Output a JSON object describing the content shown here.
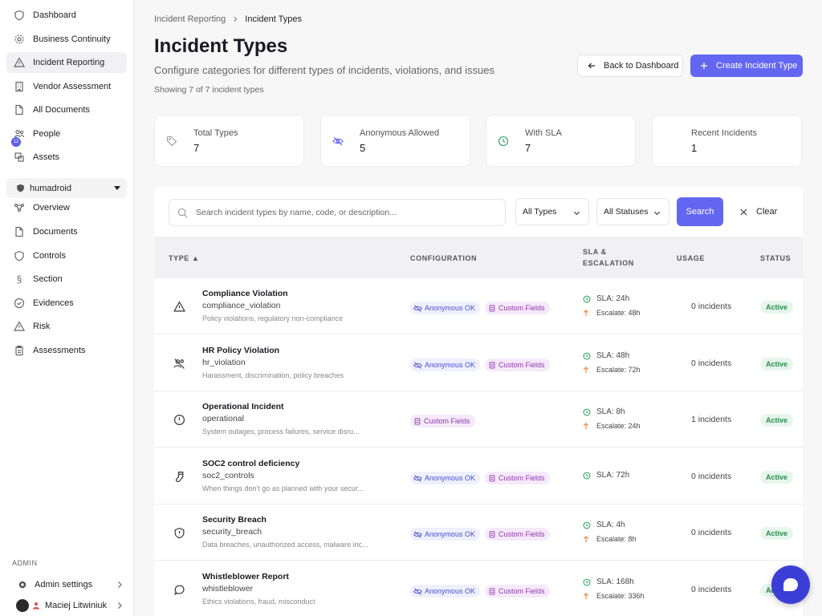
{
  "sidebar": {
    "nav": [
      {
        "label": "Dashboard",
        "icon": "shield-icon"
      },
      {
        "label": "Business Continuity",
        "icon": "gear-icon"
      },
      {
        "label": "Incident Reporting",
        "icon": "warning-icon"
      },
      {
        "label": "Vendor Assessment",
        "icon": "building-icon"
      },
      {
        "label": "All Documents",
        "icon": "documents-icon"
      },
      {
        "label": "People",
        "icon": "people-icon",
        "badge": "12"
      },
      {
        "label": "Assets",
        "icon": "assets-icon"
      }
    ],
    "workspace": "humadroid",
    "workspace_nav": [
      {
        "label": "Overview",
        "icon": "overview-icon"
      },
      {
        "label": "Documents",
        "icon": "documents-icon"
      },
      {
        "label": "Controls",
        "icon": "shield-icon"
      },
      {
        "label": "Section",
        "icon": "section-icon"
      },
      {
        "label": "Evidences",
        "icon": "check-circle-icon"
      },
      {
        "label": "Risk",
        "icon": "warning-icon"
      },
      {
        "label": "Assessments",
        "icon": "clipboard-icon"
      }
    ],
    "admin_label": "ADMIN",
    "admin_settings": "Admin settings",
    "user_name": "Maciej Litwiniuk"
  },
  "breadcrumb": {
    "parent": "Incident Reporting",
    "current": "Incident Types"
  },
  "page": {
    "title": "Incident Types",
    "subtitle": "Configure categories for different types of incidents, violations, and issues",
    "showing": "Showing 7 of 7 incident types",
    "back_button": "Back to Dashboard",
    "create_button": "Create Incident Type"
  },
  "stats": [
    {
      "label": "Total Types",
      "value": "7",
      "icon": "tag-icon"
    },
    {
      "label": "Anonymous Allowed",
      "value": "5",
      "icon": "eye-off-icon"
    },
    {
      "label": "With SLA",
      "value": "7",
      "icon": "clock-icon"
    },
    {
      "label": "Recent Incidents",
      "value": "1",
      "icon": ""
    }
  ],
  "filters": {
    "search_placeholder": "Search incident types by name, code, or description...",
    "type_filter": "All Types",
    "status_filter": "All Statuses",
    "search_button": "Search",
    "clear_button": "Clear"
  },
  "table": {
    "headers": {
      "type": "TYPE ▲",
      "configuration": "CONFIGURATION",
      "sla_line1": "SLA &",
      "sla_line2": "ESCALATION",
      "usage": "USAGE",
      "status": "STATUS"
    },
    "rows": [
      {
        "name": "Compliance Violation",
        "code": "compliance_violation",
        "desc": "Policy violations, regulatory non-compliance",
        "icon": "warning-icon",
        "anon": "Anonymous OK",
        "custom": "Custom Fields",
        "sla": "SLA: 24h",
        "escalate": "Escalate: 48h",
        "usage": "0 incidents",
        "status": "Active"
      },
      {
        "name": "HR Policy Violation",
        "code": "hr_violation",
        "desc": "Harassment, discrimination, policy breaches",
        "icon": "user-x-icon",
        "anon": "Anonymous OK",
        "custom": "Custom Fields",
        "sla": "SLA: 48h",
        "escalate": "Escalate: 72h",
        "usage": "0 incidents",
        "status": "Active"
      },
      {
        "name": "Operational Incident",
        "code": "operational",
        "desc": "System outages, process failures, service disru...",
        "icon": "alert-circle-icon",
        "anon": "",
        "custom": "Custom Fields",
        "sla": "SLA: 8h",
        "escalate": "Escalate: 24h",
        "usage": "1 incidents",
        "status": "Active"
      },
      {
        "name": "SOC2 control deficiency",
        "code": "soc2_controls",
        "desc": "When things don't go as planned with your secur...",
        "icon": "sock-icon",
        "anon": "Anonymous OK",
        "custom": "Custom Fields",
        "sla": "SLA: 72h",
        "escalate": "",
        "usage": "0 incidents",
        "status": "Active"
      },
      {
        "name": "Security Breach",
        "code": "security_breach",
        "desc": "Data breaches, unauthorized access, malware inc...",
        "icon": "shield-alert-icon",
        "anon": "Anonymous OK",
        "custom": "Custom Fields",
        "sla": "SLA: 4h",
        "escalate": "Escalate: 8h",
        "usage": "0 incidents",
        "status": "Active"
      },
      {
        "name": "Whistleblower Report",
        "code": "whistleblower",
        "desc": "Ethics violations, fraud, misconduct",
        "icon": "chat-icon",
        "anon": "Anonymous OK",
        "custom": "Custom Fields",
        "sla": "SLA: 168h",
        "escalate": "Escalate: 336h",
        "usage": "0 incidents",
        "status": "Active"
      }
    ]
  },
  "colors": {
    "accent": "#6366f1",
    "active_bg": "#e6f6ec",
    "active_text": "#2e8a4a",
    "sla_green": "#22a35a",
    "escalate_orange": "#f08a3c"
  }
}
